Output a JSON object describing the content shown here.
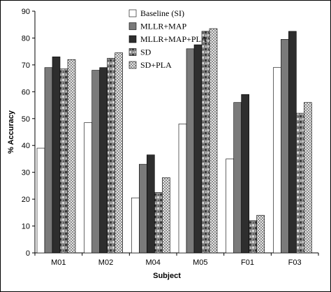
{
  "chart_data": {
    "type": "bar",
    "xlabel": "Subject",
    "ylabel": "% Accuracy",
    "ylim": [
      0,
      90
    ],
    "yticks": [
      0,
      10,
      20,
      30,
      40,
      50,
      60,
      70,
      80,
      90
    ],
    "grid": false,
    "legend_position": "top-right",
    "categories": [
      "M01",
      "M02",
      "M04",
      "M05",
      "F01",
      "F03"
    ],
    "series": [
      {
        "name": "Baseline (SI)",
        "values": [
          39,
          48.5,
          20.5,
          48,
          35,
          69
        ],
        "fill": "#ffffff"
      },
      {
        "name": "MLLR+MAP",
        "values": [
          69,
          68,
          33,
          76,
          56,
          79.5
        ],
        "fill": "#7a7a7a"
      },
      {
        "name": "MLLR+MAP+PLA",
        "values": [
          73,
          69,
          36.5,
          77.5,
          59,
          82.5
        ],
        "fill": "#2e2e2e"
      },
      {
        "name": "SD",
        "values": [
          68.5,
          72.5,
          22.5,
          82.5,
          12,
          52
        ],
        "fill": "texture-rock"
      },
      {
        "name": "SD+PLA",
        "values": [
          72,
          74.5,
          28,
          83.5,
          14,
          56
        ],
        "fill": "texture-check"
      }
    ]
  }
}
